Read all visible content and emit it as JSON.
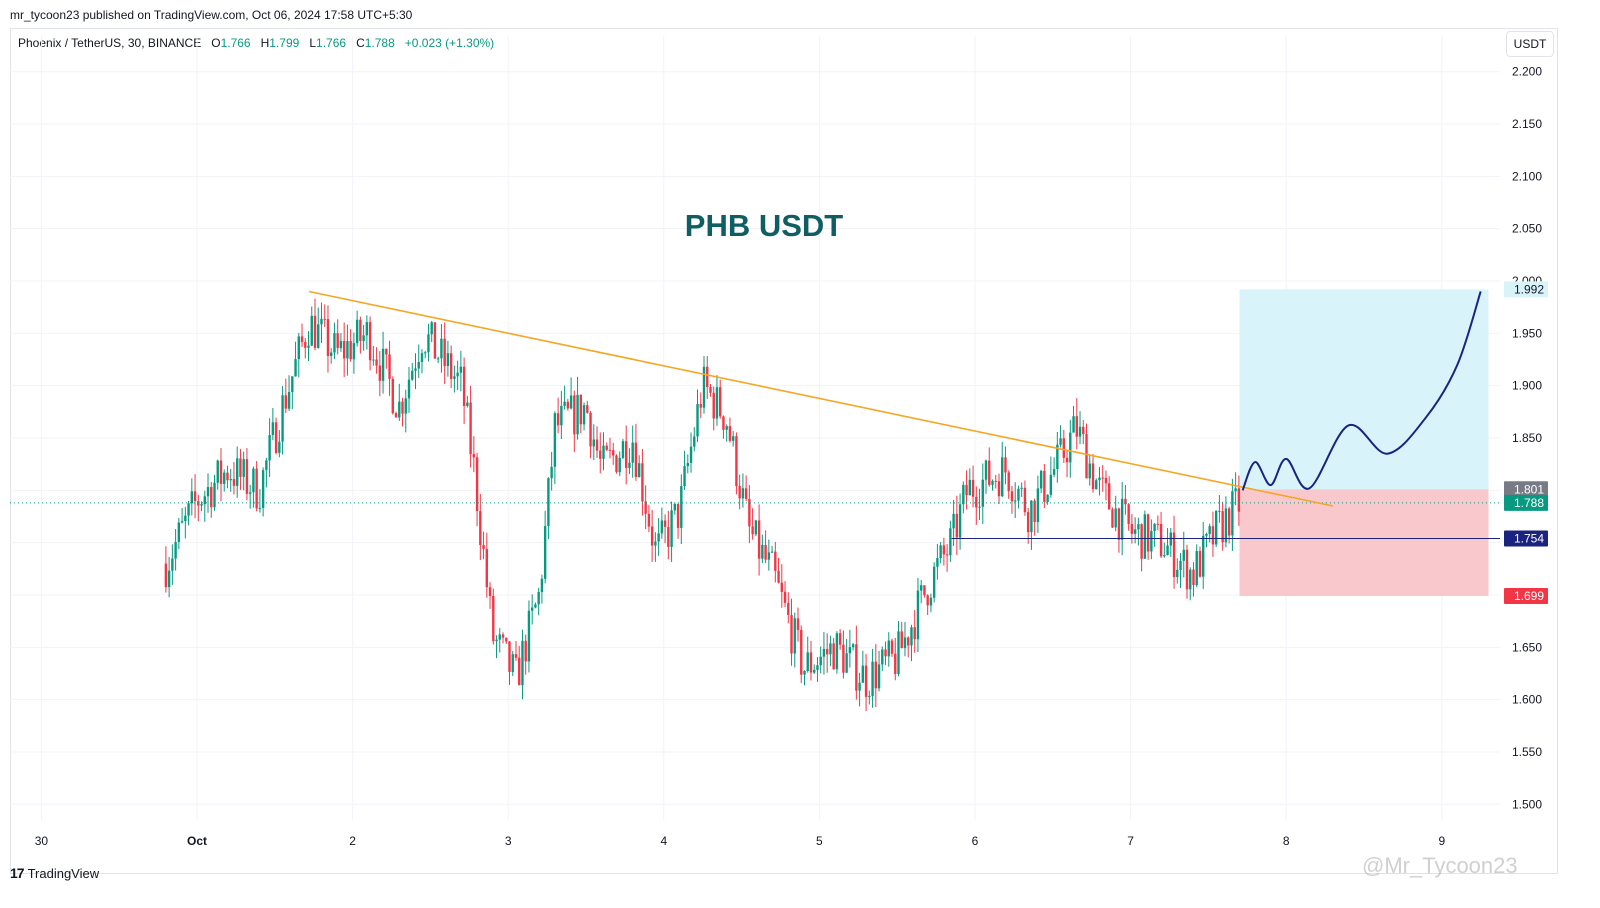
{
  "header": {
    "published_line": "mr_tycoon23 published on TradingView.com, Oct 06, 2024 17:58 UTC+5:30",
    "symbol": "Phoenix / TetherUS, 30, BINANCE",
    "open_label": "O",
    "open": "1.766",
    "high_label": "H",
    "high": "1.799",
    "low_label": "L",
    "low": "1.766",
    "close_label": "C",
    "close": "1.788",
    "change": "+0.023 (+1.30%)",
    "currency": "USDT"
  },
  "footer": {
    "logo_mark": "17",
    "logo_text": "TradingView",
    "watermark": "@Mr_Tycoon23"
  },
  "colors": {
    "up": "#089981",
    "down": "#f23645",
    "trendline": "#f5a623",
    "projection": "#1a237e",
    "target_zone": "#d9f3fa",
    "stop_zone": "#f8c8cc",
    "support_line": "#1a237e"
  },
  "chart_data": {
    "type": "candlestick",
    "title": "PHB USDT",
    "xlabel": "",
    "ylabel": "",
    "x_tick_labels": [
      "30",
      "Oct",
      "2",
      "3",
      "4",
      "5",
      "6",
      "7",
      "8",
      "9"
    ],
    "x_range_days": [
      -0.2,
      9.5
    ],
    "ylim": [
      1.485,
      2.215
    ],
    "y_ticks": [
      1.5,
      1.55,
      1.6,
      1.65,
      1.7,
      1.75,
      1.8,
      1.85,
      1.9,
      1.95,
      2.0,
      2.05,
      2.1,
      2.15,
      2.2
    ],
    "y_tick_labels": [
      "1.500",
      "1.550",
      "1.600",
      "1.650",
      "1.700",
      "1.750",
      "1.800",
      "1.850",
      "1.900",
      "1.950",
      "2.000",
      "2.050",
      "2.100",
      "2.150",
      "2.200"
    ],
    "grid": true,
    "price_path": [
      [
        -0.2,
        1.73
      ],
      [
        0.0,
        1.79
      ],
      [
        0.2,
        1.82
      ],
      [
        0.4,
        1.8
      ],
      [
        0.55,
        1.88
      ],
      [
        0.72,
        1.96
      ],
      [
        0.9,
        1.93
      ],
      [
        1.1,
        1.95
      ],
      [
        1.3,
        1.88
      ],
      [
        1.45,
        1.95
      ],
      [
        1.7,
        1.9
      ],
      [
        1.78,
        1.82
      ],
      [
        1.9,
        1.66
      ],
      [
        2.05,
        1.62
      ],
      [
        2.2,
        1.7
      ],
      [
        2.3,
        1.86
      ],
      [
        2.5,
        1.88
      ],
      [
        2.6,
        1.82
      ],
      [
        2.8,
        1.85
      ],
      [
        2.95,
        1.74
      ],
      [
        3.1,
        1.78
      ],
      [
        3.25,
        1.9
      ],
      [
        3.4,
        1.87
      ],
      [
        3.55,
        1.76
      ],
      [
        3.7,
        1.72
      ],
      [
        3.9,
        1.63
      ],
      [
        4.1,
        1.65
      ],
      [
        4.3,
        1.62
      ],
      [
        4.5,
        1.64
      ],
      [
        4.7,
        1.71
      ],
      [
        4.85,
        1.75
      ],
      [
        4.95,
        1.8
      ],
      [
        5.2,
        1.82
      ],
      [
        5.35,
        1.78
      ],
      [
        5.55,
        1.83
      ],
      [
        5.65,
        1.86
      ],
      [
        5.8,
        1.8
      ],
      [
        6.0,
        1.76
      ],
      [
        6.2,
        1.75
      ],
      [
        6.4,
        1.72
      ],
      [
        6.55,
        1.76
      ],
      [
        6.7,
        1.788
      ]
    ],
    "trendline": {
      "from": [
        0.72,
        1.99
      ],
      "to": [
        7.3,
        1.785
      ]
    },
    "support_level": {
      "from_x": 4.85,
      "value": 1.754
    },
    "position": {
      "x_start": 6.7,
      "x_end": 8.3,
      "target": 1.992,
      "entry": 1.801,
      "stop": 1.699
    },
    "projection_path": [
      [
        6.72,
        1.8
      ],
      [
        6.8,
        1.827
      ],
      [
        6.9,
        1.805
      ],
      [
        7.0,
        1.83
      ],
      [
        7.15,
        1.802
      ],
      [
        7.4,
        1.862
      ],
      [
        7.65,
        1.835
      ],
      [
        7.9,
        1.87
      ],
      [
        8.1,
        1.92
      ],
      [
        8.25,
        1.99
      ]
    ],
    "price_labels": [
      {
        "value": 1.992,
        "text": "1.992",
        "bg": "#d9f3fa",
        "fg": "#131722"
      },
      {
        "value": 1.801,
        "text": "1.801",
        "bg": "#787b86",
        "fg": "#ffffff"
      },
      {
        "value": 1.788,
        "text": "1.788",
        "bg": "#089981",
        "fg": "#ffffff"
      },
      {
        "value": 1.754,
        "text": "1.754",
        "bg": "#1a237e",
        "fg": "#ffffff"
      },
      {
        "value": 1.699,
        "text": "1.699",
        "bg": "#f23645",
        "fg": "#ffffff"
      }
    ]
  }
}
